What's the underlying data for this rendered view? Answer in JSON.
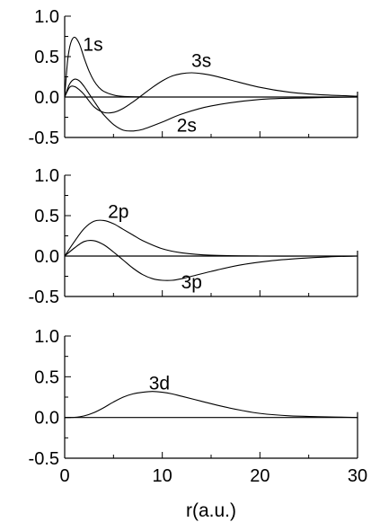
{
  "chart_data": [
    {
      "type": "line",
      "xlim": [
        0,
        30
      ],
      "ylim": [
        -0.5,
        1.0
      ],
      "yticks": [
        "1.0",
        "0.5",
        "0.0",
        "-0.5"
      ],
      "xticks": [],
      "series": [
        {
          "name": "1s",
          "x": [
            0,
            0.3,
            0.6,
            1,
            1.5,
            2,
            2.5,
            3,
            3.5,
            4,
            5,
            6,
            8,
            10,
            15,
            20,
            30
          ],
          "values": [
            0,
            0.45,
            0.66,
            0.74,
            0.66,
            0.48,
            0.32,
            0.2,
            0.12,
            0.07,
            0.025,
            0.008,
            0.001,
            0,
            0,
            0,
            0
          ]
        },
        {
          "name": "2s",
          "x": [
            0,
            0.5,
            1,
            1.5,
            2,
            2.5,
            3,
            3.5,
            4,
            5,
            6,
            7,
            8,
            10,
            12,
            15,
            20,
            25,
            30
          ],
          "values": [
            0,
            0.16,
            0.22,
            0.2,
            0.13,
            0.04,
            -0.05,
            -0.14,
            -0.22,
            -0.34,
            -0.41,
            -0.42,
            -0.4,
            -0.31,
            -0.21,
            -0.11,
            -0.03,
            -0.01,
            0
          ]
        },
        {
          "name": "3s",
          "x": [
            0,
            0.5,
            1,
            1.5,
            2,
            3,
            4,
            5,
            6,
            7,
            8,
            9,
            10,
            11,
            12,
            13,
            14,
            15,
            17,
            20,
            23,
            26,
            30
          ],
          "values": [
            0,
            0.12,
            0.13,
            0.09,
            0.03,
            -0.12,
            -0.19,
            -0.19,
            -0.14,
            -0.06,
            0.03,
            0.12,
            0.2,
            0.26,
            0.29,
            0.3,
            0.29,
            0.27,
            0.21,
            0.12,
            0.06,
            0.03,
            0.01
          ]
        }
      ],
      "labels": [
        {
          "text": "1s",
          "x": 2.9,
          "y": 0.65
        },
        {
          "text": "3s",
          "x": 14.0,
          "y": 0.45
        },
        {
          "text": "2s",
          "x": 12.5,
          "y": -0.35
        }
      ]
    },
    {
      "type": "line",
      "xlim": [
        0,
        30
      ],
      "ylim": [
        -0.5,
        1.0
      ],
      "yticks": [
        "1.0",
        "0.5",
        "0.0",
        "-0.5"
      ],
      "xticks": [],
      "series": [
        {
          "name": "2p",
          "x": [
            0,
            1,
            2,
            3,
            4,
            5,
            6,
            7,
            8,
            10,
            12,
            15,
            20,
            25,
            30
          ],
          "values": [
            0,
            0.18,
            0.34,
            0.43,
            0.44,
            0.4,
            0.33,
            0.26,
            0.19,
            0.09,
            0.04,
            0.01,
            0,
            0,
            0
          ]
        },
        {
          "name": "3p",
          "x": [
            0,
            1,
            2,
            3,
            4,
            5,
            6,
            7,
            8,
            9,
            10,
            11,
            12,
            13,
            15,
            18,
            21,
            24,
            27,
            30
          ],
          "values": [
            0,
            0.1,
            0.18,
            0.19,
            0.14,
            0.05,
            -0.05,
            -0.15,
            -0.23,
            -0.28,
            -0.3,
            -0.3,
            -0.28,
            -0.25,
            -0.19,
            -0.11,
            -0.06,
            -0.03,
            -0.01,
            0
          ]
        }
      ],
      "labels": [
        {
          "text": "2p",
          "x": 5.5,
          "y": 0.55
        },
        {
          "text": "3p",
          "x": 13.0,
          "y": -0.32
        }
      ]
    },
    {
      "type": "line",
      "xlim": [
        0,
        30
      ],
      "ylim": [
        -0.5,
        1.0
      ],
      "yticks": [
        "1.0",
        "0.5",
        "0.0",
        "-0.5"
      ],
      "xticks": [
        "0",
        "10",
        "20",
        "30"
      ],
      "xlabel": "r(a.u.)",
      "series": [
        {
          "name": "3d",
          "x": [
            0,
            1,
            2,
            3,
            4,
            5,
            6,
            7,
            8,
            9,
            10,
            11,
            12,
            14,
            16,
            18,
            20,
            23,
            26,
            30
          ],
          "values": [
            0,
            0.002,
            0.02,
            0.06,
            0.12,
            0.19,
            0.25,
            0.29,
            0.31,
            0.32,
            0.31,
            0.29,
            0.26,
            0.2,
            0.14,
            0.09,
            0.05,
            0.02,
            0.01,
            0
          ]
        }
      ],
      "labels": [
        {
          "text": "3d",
          "x": 9.7,
          "y": 0.42
        }
      ]
    }
  ]
}
